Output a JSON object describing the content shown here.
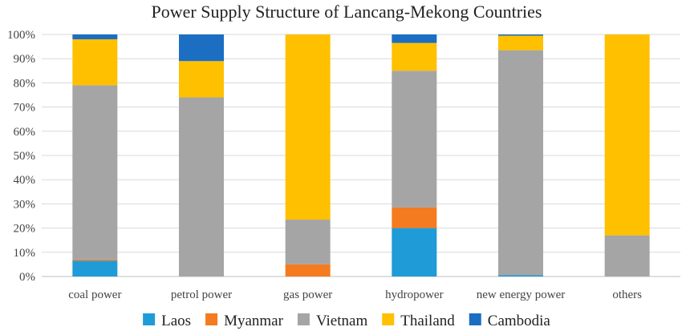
{
  "chart_data": {
    "type": "bar",
    "stacked": true,
    "title": "Power Supply Structure of Lancang-Mekong Countries",
    "xlabel": "",
    "ylabel": "",
    "ylim": [
      0,
      100
    ],
    "y_ticks": [
      "0%",
      "10%",
      "20%",
      "30%",
      "40%",
      "50%",
      "60%",
      "70%",
      "80%",
      "90%",
      "100%"
    ],
    "grid": true,
    "legend_position": "bottom",
    "categories": [
      "coal power",
      "petrol power",
      "gas power",
      "hydropower",
      "new energy power",
      "others"
    ],
    "series": [
      {
        "name": "Laos",
        "color": "#1f9bd7",
        "values": [
          6.5,
          0,
          0,
          20,
          0.5,
          0
        ]
      },
      {
        "name": "Myanmar",
        "color": "#f47b20",
        "values": [
          0.5,
          0,
          5,
          8.5,
          0,
          0
        ]
      },
      {
        "name": "Vietnam",
        "color": "#a5a5a5",
        "values": [
          72,
          74,
          18.5,
          56.5,
          93,
          17
        ]
      },
      {
        "name": "Thailand",
        "color": "#ffc000",
        "values": [
          19,
          15,
          76.5,
          11.5,
          6,
          83
        ]
      },
      {
        "name": "Cambodia",
        "color": "#1b6ec2",
        "values": [
          2,
          11,
          0,
          3.5,
          0.5,
          0
        ]
      }
    ]
  }
}
